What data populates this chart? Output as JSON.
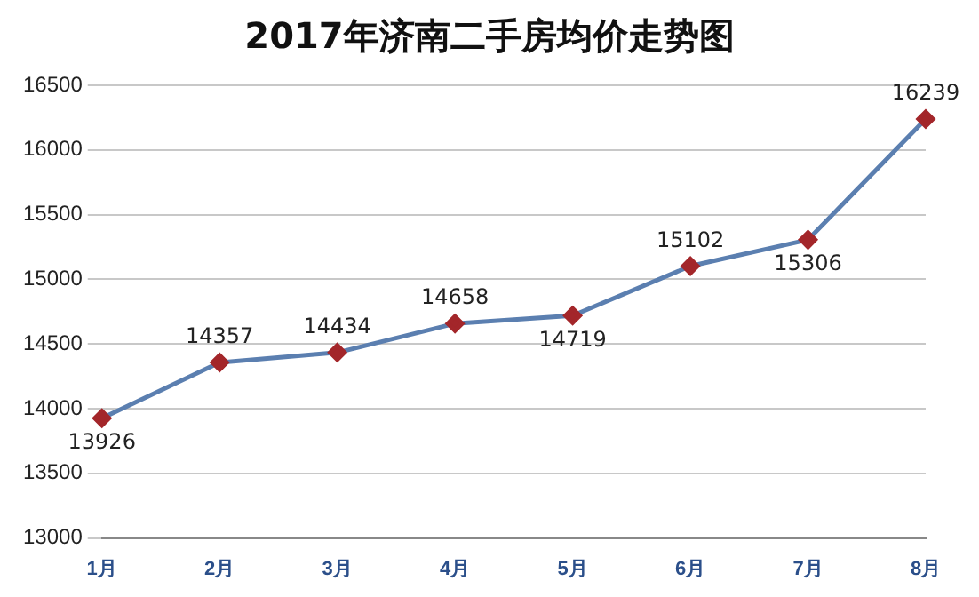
{
  "chart_data": {
    "type": "line",
    "title": "2017年济南二手房均价走势图",
    "categories": [
      "1月",
      "2月",
      "3月",
      "4月",
      "5月",
      "6月",
      "7月",
      "8月"
    ],
    "series": [
      {
        "color": "#5b7fb0",
        "colors": [
          "#a3262a",
          "#a3262a",
          "#a3262a",
          "#a3262a",
          "#a3262a",
          "#a3262a",
          "#a3262a",
          "#a3262a"
        ],
        "values": [
          13926,
          14357,
          14434,
          14658,
          14719,
          15102,
          15306,
          16239
        ]
      }
    ],
    "ylim": [
      13000,
      16500
    ],
    "yticks": [
      13000,
      13500,
      14000,
      14500,
      15000,
      15500,
      16000,
      16500
    ],
    "grid": "y",
    "marker": "diamond",
    "line_style": "solid",
    "data_labels": true,
    "legend": false
  }
}
